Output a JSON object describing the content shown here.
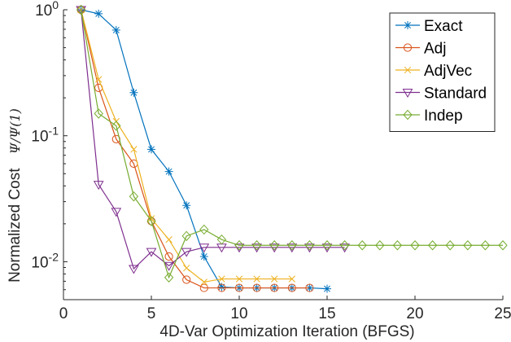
{
  "chart_data": {
    "type": "line",
    "xlabel": "4D-Var Optimization Iteration (BFGS)",
    "ylabel": "Normalized Cost",
    "ylabel_math": "Ψ/Ψ(1)",
    "xlim": [
      0,
      25
    ],
    "ylim": [
      0.005,
      1
    ],
    "yscale": "log",
    "grid": false,
    "legend_position": "top-right",
    "x_ticks": [
      0,
      5,
      10,
      15,
      20,
      25
    ],
    "x_tick_labels": [
      "0",
      "5",
      "10",
      "15",
      "20",
      "25"
    ],
    "y_ticks": [
      1,
      0.1,
      0.01
    ],
    "y_tick_labels": [
      {
        "base": "10",
        "exp": "0"
      },
      {
        "base": "10",
        "exp": "-1"
      },
      {
        "base": "10",
        "exp": "-2"
      }
    ],
    "series": [
      {
        "name": "Exact",
        "color": "#0072bd",
        "marker": "star",
        "x": [
          1,
          2,
          3,
          4,
          5,
          6,
          7,
          8,
          9,
          10,
          11,
          12,
          13,
          14,
          15
        ],
        "y": [
          1.0,
          0.93,
          0.69,
          0.22,
          0.078,
          0.052,
          0.028,
          0.011,
          0.0063,
          0.0062,
          0.0062,
          0.0062,
          0.0062,
          0.0062,
          0.0061
        ]
      },
      {
        "name": "Adj",
        "color": "#d95319",
        "marker": "circle",
        "x": [
          1,
          2,
          3,
          4,
          5,
          6,
          7,
          8,
          9,
          10,
          11,
          12,
          13,
          14
        ],
        "y": [
          1.0,
          0.24,
          0.094,
          0.06,
          0.021,
          0.011,
          0.0072,
          0.0062,
          0.0062,
          0.0062,
          0.0062,
          0.0062,
          0.0062,
          0.0062
        ]
      },
      {
        "name": "AdjVec",
        "color": "#edb120",
        "marker": "x",
        "x": [
          1,
          2,
          3,
          4,
          5,
          6,
          7,
          8,
          9,
          10,
          11,
          12,
          13
        ],
        "y": [
          1.0,
          0.28,
          0.13,
          0.078,
          0.022,
          0.015,
          0.0089,
          0.0069,
          0.0073,
          0.0073,
          0.0073,
          0.0073,
          0.0073
        ]
      },
      {
        "name": "Standard",
        "color": "#7e2f8e",
        "marker": "triangle-down",
        "x": [
          1,
          2,
          3,
          4,
          5,
          6,
          7,
          8,
          9,
          10,
          11,
          12,
          13,
          14,
          15,
          16
        ],
        "y": [
          1.0,
          0.041,
          0.025,
          0.0088,
          0.012,
          0.0093,
          0.012,
          0.013,
          0.013,
          0.013,
          0.013,
          0.013,
          0.013,
          0.013,
          0.013,
          0.013
        ]
      },
      {
        "name": "Indep",
        "color": "#77ac30",
        "marker": "diamond",
        "x": [
          1,
          2,
          3,
          4,
          5,
          6,
          7,
          8,
          9,
          10,
          11,
          12,
          13,
          14,
          15,
          16,
          17,
          18,
          19,
          20,
          21,
          22,
          23,
          24,
          25
        ],
        "y": [
          1.0,
          0.15,
          0.12,
          0.033,
          0.021,
          0.0075,
          0.016,
          0.018,
          0.015,
          0.0135,
          0.0135,
          0.0135,
          0.0135,
          0.0135,
          0.0135,
          0.0135,
          0.0135,
          0.0135,
          0.0135,
          0.0135,
          0.0135,
          0.0135,
          0.0135,
          0.0135,
          0.0135
        ]
      }
    ]
  }
}
